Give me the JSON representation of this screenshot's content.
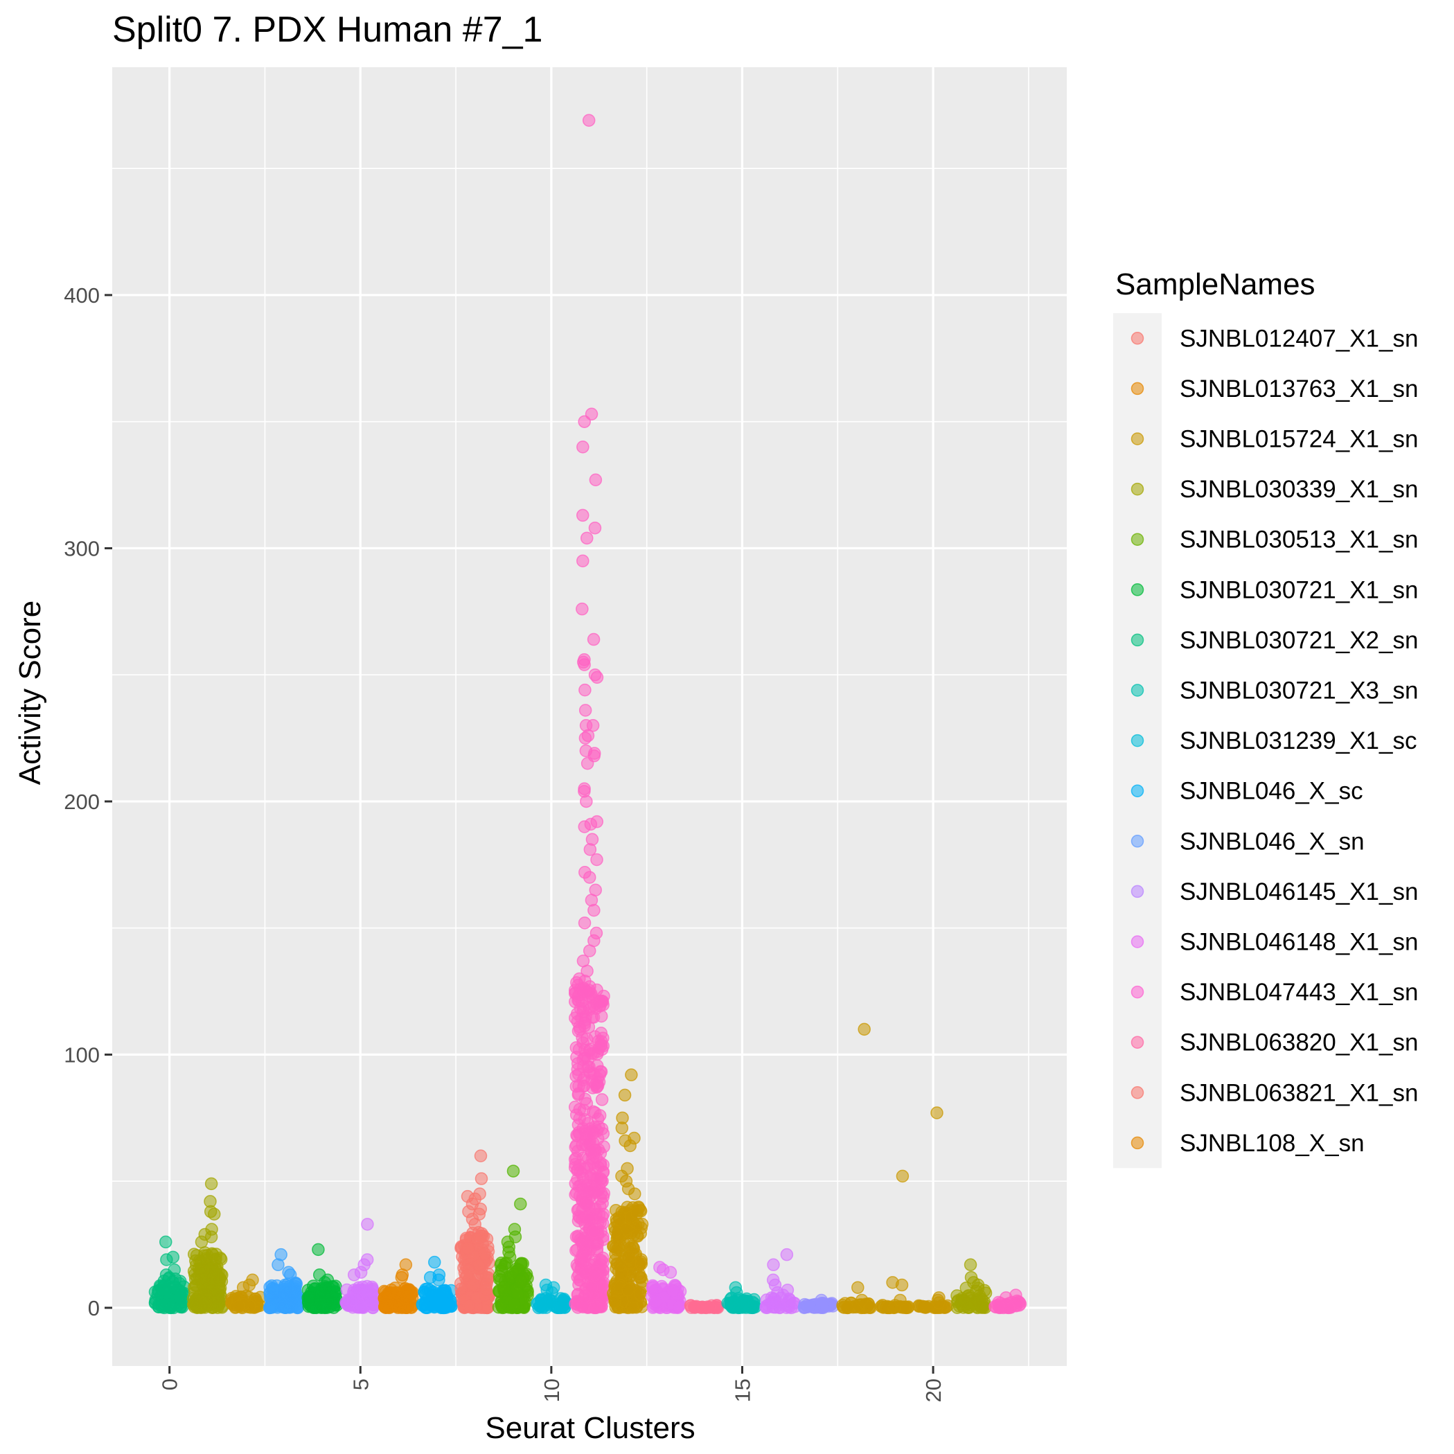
{
  "chart_data": {
    "type": "scatter",
    "title": "Split0 7. PDX Human #7_1",
    "xlabel": "Seurat Clusters",
    "ylabel": "Activity Score",
    "xlim": [
      -1.5,
      23.5
    ],
    "ylim": [
      -23,
      490
    ],
    "x_ticks": [
      0,
      5,
      10,
      15,
      20
    ],
    "x_tick_labels": [
      "0",
      "5",
      "10",
      "15",
      "20"
    ],
    "y_ticks": [
      0,
      100,
      200,
      300,
      400
    ],
    "y_tick_labels": [
      "0",
      "100",
      "200",
      "300",
      "400"
    ],
    "grid": true,
    "jitter": true,
    "legend": {
      "title": "SampleNames",
      "position": "right",
      "entries": [
        {
          "name": "SJNBL012407_X1_sn",
          "color": "#F8766D"
        },
        {
          "name": "SJNBL013763_X1_sn",
          "color": "#E58700"
        },
        {
          "name": "SJNBL015724_X1_sn",
          "color": "#C99800"
        },
        {
          "name": "SJNBL030339_X1_sn",
          "color": "#A3A500"
        },
        {
          "name": "SJNBL030513_X1_sn",
          "color": "#6BB100"
        },
        {
          "name": "SJNBL030721_X1_sn",
          "color": "#00BA38"
        },
        {
          "name": "SJNBL030721_X2_sn",
          "color": "#00BF7D"
        },
        {
          "name": "SJNBL030721_X3_sn",
          "color": "#00C0AF"
        },
        {
          "name": "SJNBL031239_X1_sc",
          "color": "#00BCD8"
        },
        {
          "name": "SJNBL046_X_sc",
          "color": "#00B0F6"
        },
        {
          "name": "SJNBL046_X_sn",
          "color": "#619CFF"
        },
        {
          "name": "SJNBL046145_X1_sn",
          "color": "#B983FF"
        },
        {
          "name": "SJNBL046148_X1_sn",
          "color": "#E76BF3"
        },
        {
          "name": "SJNBL047443_X1_sn",
          "color": "#FD61D1"
        },
        {
          "name": "SJNBL063820_X1_sn",
          "color": "#FF67A4"
        },
        {
          "name": "SJNBL063821_X1_sn",
          "color": "#F8766D"
        },
        {
          "name": "SJNBL108_X_sn",
          "color": "#E58700"
        }
      ]
    },
    "clusters": [
      {
        "cluster": 0,
        "color": "#00BF7D",
        "bulk_max": 12,
        "n_bulk": 90,
        "outliers": [
          26,
          20,
          19,
          15,
          13,
          0
        ]
      },
      {
        "cluster": 1,
        "color": "#A3A500",
        "bulk_max": 22,
        "n_bulk": 140,
        "outliers": [
          49,
          42,
          38,
          37,
          31,
          29,
          28,
          26
        ]
      },
      {
        "cluster": 2,
        "color": "#C99800",
        "bulk_max": 5,
        "n_bulk": 50,
        "outliers": [
          11,
          9,
          8
        ]
      },
      {
        "cluster": 3,
        "color": "#35A2FF",
        "bulk_max": 10,
        "n_bulk": 110,
        "outliers": [
          21,
          17,
          14,
          13
        ]
      },
      {
        "cluster": 4,
        "color": "#00BA38",
        "bulk_max": 9,
        "n_bulk": 90,
        "outliers": [
          23,
          13,
          11,
          10
        ]
      },
      {
        "cluster": 5,
        "color": "#D575FE",
        "bulk_max": 9,
        "n_bulk": 80,
        "outliers": [
          33,
          19,
          17,
          14,
          13
        ]
      },
      {
        "cluster": 6,
        "color": "#E58700",
        "bulk_max": 8,
        "n_bulk": 80,
        "outliers": [
          17,
          13,
          12
        ]
      },
      {
        "cluster": 7,
        "color": "#00B0F6",
        "bulk_max": 8,
        "n_bulk": 90,
        "outliers": [
          18,
          13,
          12,
          11
        ]
      },
      {
        "cluster": 8,
        "color": "#F8766D",
        "bulk_max": 30,
        "n_bulk": 180,
        "outliers": [
          60,
          51,
          45,
          44,
          43,
          41,
          39,
          38,
          37,
          35,
          33
        ]
      },
      {
        "cluster": 9,
        "color": "#53B400",
        "bulk_max": 18,
        "n_bulk": 130,
        "outliers": [
          54,
          41,
          31,
          28,
          26,
          24,
          22,
          20
        ]
      },
      {
        "cluster": 10,
        "color": "#00BCD8",
        "bulk_max": 4,
        "n_bulk": 40,
        "outliers": [
          9,
          8,
          7,
          6
        ]
      },
      {
        "cluster": 11,
        "color": "#FF61C3",
        "bulk_max": 130,
        "n_bulk": 420,
        "outliers": [
          469,
          353,
          350,
          340,
          327,
          313,
          308,
          304,
          295,
          276,
          264,
          256,
          255,
          254,
          250,
          249,
          244,
          236,
          230,
          230,
          226,
          225,
          220,
          219,
          218,
          215,
          205,
          204,
          200,
          192,
          191,
          190,
          185,
          181,
          177,
          172,
          170,
          165,
          161,
          157,
          152,
          148,
          145,
          141,
          137,
          133,
          90,
          78,
          62,
          55,
          47,
          41,
          35,
          30,
          25,
          20,
          13,
          8,
          0
        ]
      },
      {
        "cluster": 12,
        "color": "#C99800",
        "bulk_max": 40,
        "n_bulk": 200,
        "outliers": [
          92,
          84,
          75,
          71,
          67,
          66,
          64,
          55,
          52,
          50,
          47,
          45
        ]
      },
      {
        "cluster": 13,
        "color": "#E76BF3",
        "bulk_max": 9,
        "n_bulk": 80,
        "outliers": [
          16,
          15,
          14
        ]
      },
      {
        "cluster": 14,
        "color": "#FF6C91",
        "bulk_max": 1,
        "n_bulk": 25,
        "outliers": []
      },
      {
        "cluster": 15,
        "color": "#00C0AF",
        "bulk_max": 4,
        "n_bulk": 60,
        "outliers": [
          8,
          6
        ]
      },
      {
        "cluster": 16,
        "color": "#D575FE",
        "bulk_max": 4,
        "n_bulk": 30,
        "outliers": [
          21,
          17,
          11,
          9,
          7,
          6,
          5
        ]
      },
      {
        "cluster": 17,
        "color": "#9590FF",
        "bulk_max": 2,
        "n_bulk": 40,
        "outliers": [
          3
        ]
      },
      {
        "cluster": 18,
        "color": "#C99800",
        "bulk_max": 2,
        "n_bulk": 30,
        "outliers": [
          110,
          8,
          3
        ]
      },
      {
        "cluster": 19,
        "color": "#C99800",
        "bulk_max": 1,
        "n_bulk": 30,
        "outliers": [
          52,
          10,
          9,
          3
        ]
      },
      {
        "cluster": 20,
        "color": "#C99800",
        "bulk_max": 1,
        "n_bulk": 25,
        "outliers": [
          77,
          4,
          3,
          2
        ]
      },
      {
        "cluster": 21,
        "color": "#A3A500",
        "bulk_max": 8,
        "n_bulk": 45,
        "outliers": [
          17,
          12,
          10,
          9
        ]
      },
      {
        "cluster": 22,
        "color": "#FF61C3",
        "bulk_max": 3,
        "n_bulk": 30,
        "outliers": [
          5,
          4
        ]
      }
    ]
  }
}
